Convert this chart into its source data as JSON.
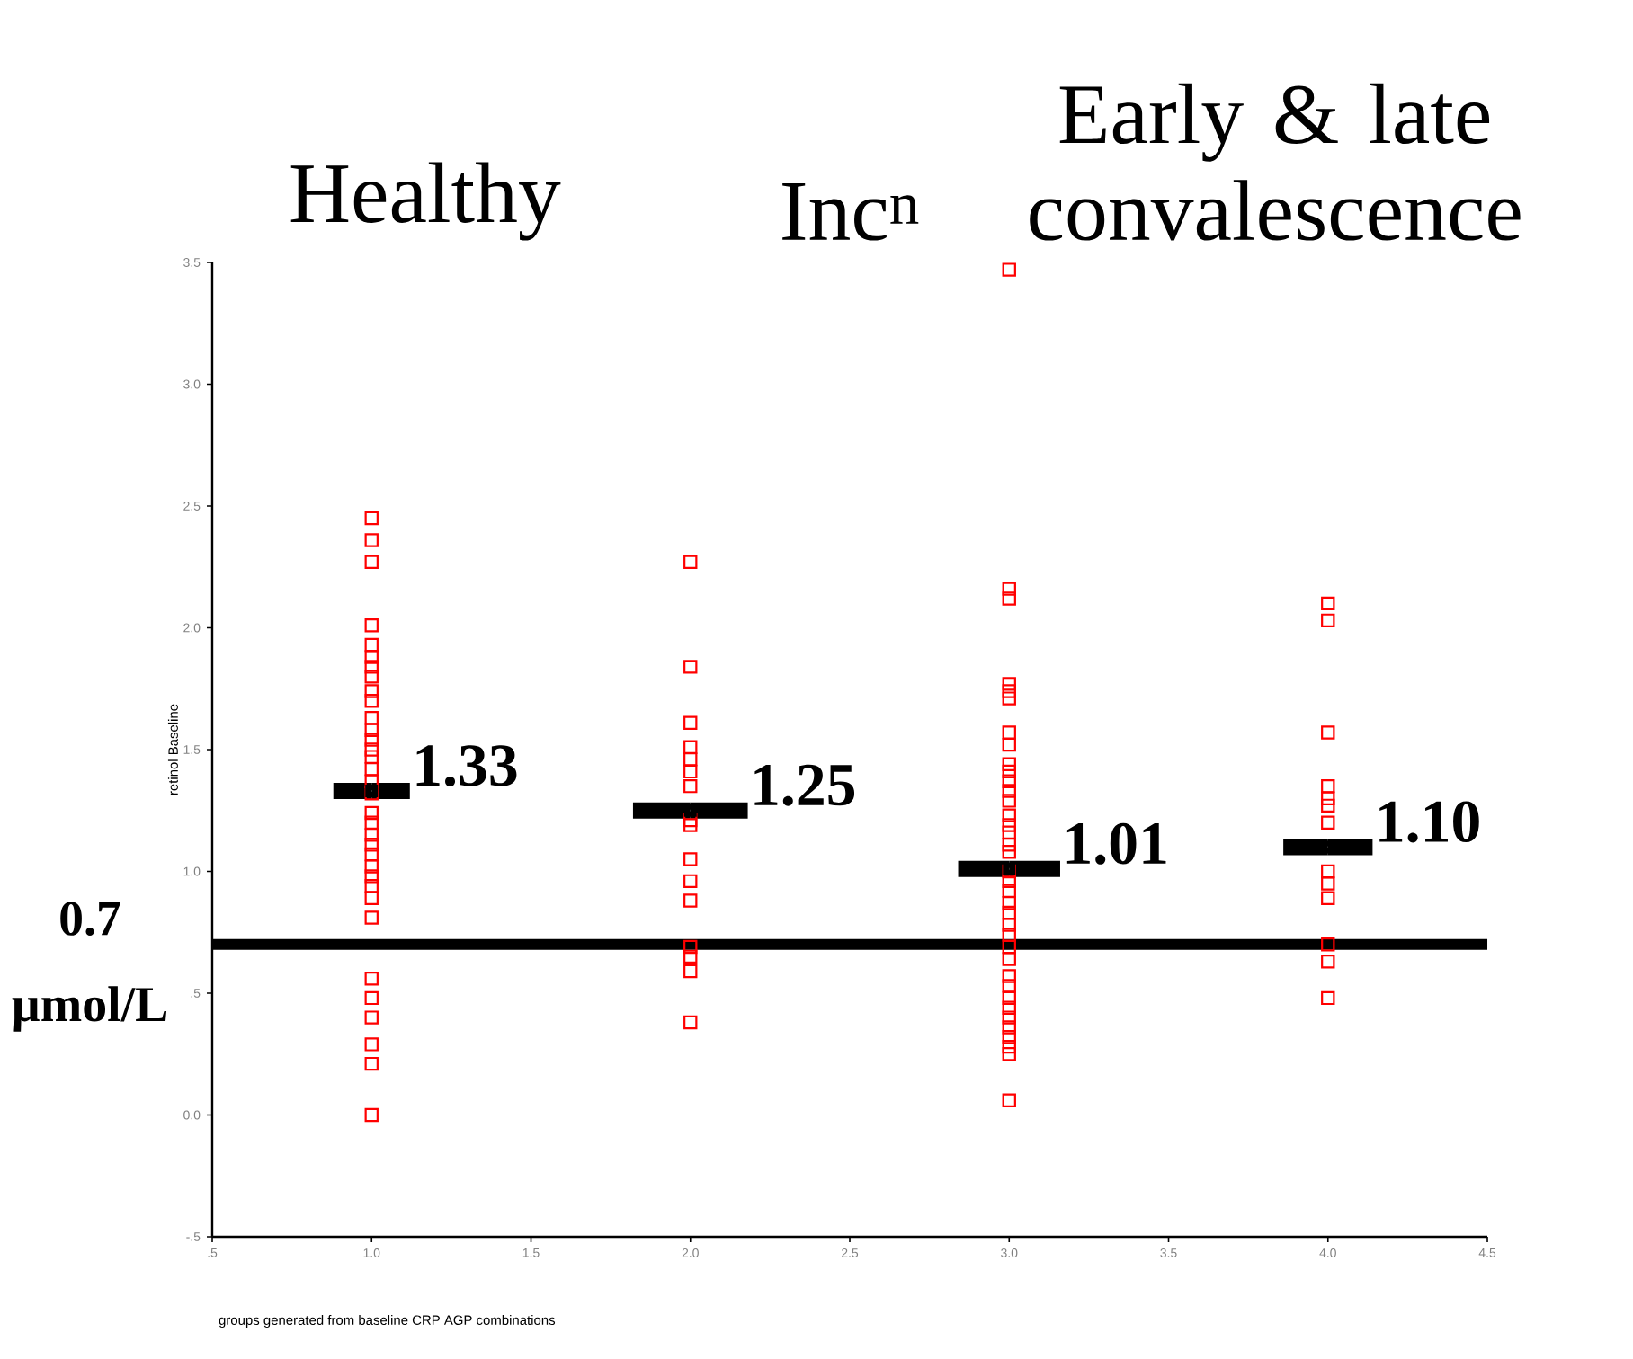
{
  "chart_data": {
    "type": "scatter",
    "xlabel": "groups generated from baseline CRP AGP combinations",
    "ylabel": "retinol Baseline",
    "xlim": [
      0.5,
      4.5
    ],
    "xticks": [
      {
        "value": 0.5,
        "label": ".5"
      },
      {
        "value": 1,
        "label": "1.0"
      },
      {
        "value": 1.5,
        "label": "1.5"
      },
      {
        "value": 2,
        "label": "2.0"
      },
      {
        "value": 2.5,
        "label": "2.5"
      },
      {
        "value": 3,
        "label": "3.0"
      },
      {
        "value": 3.5,
        "label": "3.5"
      },
      {
        "value": 4,
        "label": "4.0"
      },
      {
        "value": 4.5,
        "label": "4.5"
      }
    ],
    "ylim": [
      -0.5,
      3.5
    ],
    "yticks": [
      {
        "value": -0.5,
        "label": "-.5"
      },
      {
        "value": 0,
        "label": "0.0"
      },
      {
        "value": 0.5,
        "label": ".5"
      },
      {
        "value": 1,
        "label": "1.0"
      },
      {
        "value": 1.5,
        "label": "1.5"
      },
      {
        "value": 2,
        "label": "2.0"
      },
      {
        "value": 2.5,
        "label": "2.5"
      },
      {
        "value": 3,
        "label": "3.0"
      },
      {
        "value": 3.5,
        "label": "3.5"
      }
    ],
    "annotations": [
      "Healthy",
      "Inc$^{n}$",
      "Early & late convalescence"
    ],
    "marker": "square",
    "series": [
      {
        "color": "#ff0000",
        "x": [
          1,
          1,
          1,
          1,
          1,
          1,
          1,
          1,
          1,
          1,
          1,
          1,
          1,
          1,
          1,
          1,
          1,
          1,
          1,
          1,
          1,
          1,
          1,
          1,
          1,
          1,
          1,
          1,
          1,
          1,
          1,
          1,
          1,
          1,
          2,
          2,
          2,
          2,
          2,
          2,
          2,
          2,
          2,
          2,
          2,
          2,
          2,
          2,
          2,
          2,
          3,
          3,
          3,
          3,
          3,
          3,
          3,
          3,
          3,
          3,
          3,
          3,
          3,
          3,
          3,
          3,
          3,
          3,
          3,
          3,
          3,
          3,
          3,
          3,
          3,
          3,
          3,
          3,
          3,
          3,
          3,
          3,
          3,
          3,
          3,
          3,
          3,
          4,
          4,
          4,
          4,
          4,
          4,
          4,
          4,
          4,
          4,
          4,
          4,
          4
        ],
        "values": [
          2.45,
          2.36,
          2.27,
          2.01,
          1.93,
          1.88,
          1.84,
          1.8,
          1.74,
          1.7,
          1.63,
          1.58,
          1.54,
          1.5,
          1.47,
          1.42,
          1.37,
          1.32,
          1.24,
          1.2,
          1.15,
          1.11,
          1.07,
          1.02,
          0.98,
          0.94,
          0.89,
          0.81,
          0.56,
          0.48,
          0.4,
          0.29,
          0.21,
          0.0,
          2.27,
          1.84,
          1.61,
          1.51,
          1.46,
          1.41,
          1.35,
          1.21,
          1.19,
          1.05,
          0.96,
          0.88,
          0.69,
          0.65,
          0.59,
          0.38,
          3.47,
          2.16,
          2.12,
          1.77,
          1.74,
          1.71,
          1.57,
          1.52,
          1.44,
          1.41,
          1.37,
          1.33,
          1.29,
          1.23,
          1.19,
          1.16,
          1.11,
          1.08,
          1.0,
          0.96,
          0.92,
          0.87,
          0.83,
          0.78,
          0.74,
          0.69,
          0.64,
          0.57,
          0.53,
          0.48,
          0.44,
          0.4,
          0.36,
          0.32,
          0.28,
          0.25,
          0.06,
          2.1,
          2.03,
          1.57,
          1.35,
          1.3,
          1.27,
          1.2,
          1.0,
          0.95,
          0.89,
          0.7,
          0.63,
          0.48
        ]
      },
      {
        "color": "#000000",
        "x": [
          1,
          2,
          3,
          4
        ],
        "values": [
          1.33,
          1.25,
          1.01,
          1.1
        ],
        "xerrors": [
          0.12,
          0.18,
          0.16,
          0.14
        ],
        "value_labels": [
          "1.33",
          "1.25",
          "1.01",
          "1.10"
        ]
      }
    ],
    "ref_lines": [
      {
        "axis": "y",
        "value": 0.7,
        "label": "0.7 µmol/L",
        "color": "#000000"
      }
    ]
  }
}
